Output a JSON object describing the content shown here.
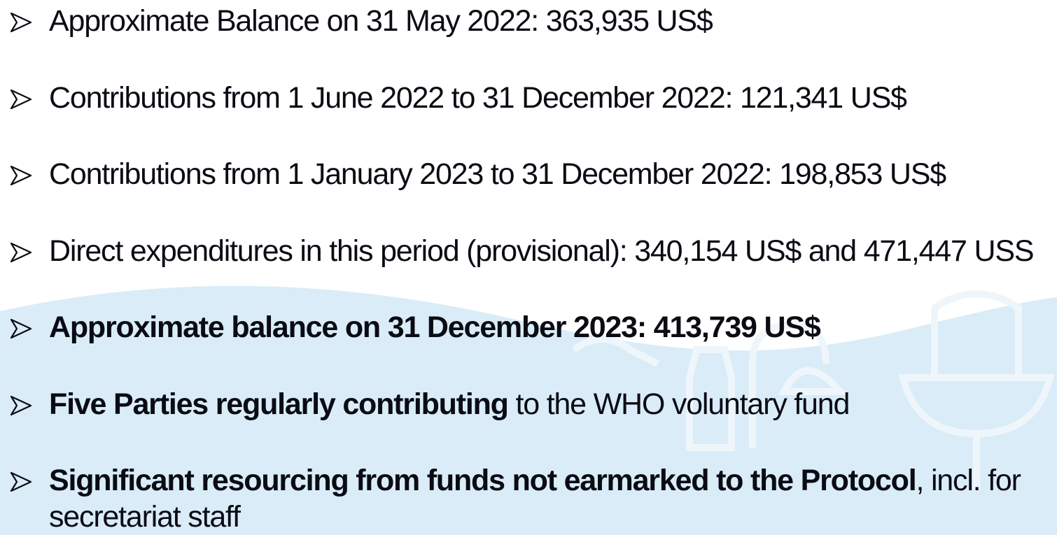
{
  "bullets": [
    {
      "segments": [
        {
          "text": "Approximate Balance on 31 May 2022: 363,935 US$",
          "bold": false
        }
      ]
    },
    {
      "segments": [
        {
          "text": "Contributions from 1 June 2022 to 31 December 2022: 121,341 US$",
          "bold": false
        }
      ]
    },
    {
      "segments": [
        {
          "text": "Contributions from 1 January 2023 to 31 December 2022: 198,853 US$",
          "bold": false
        }
      ]
    },
    {
      "segments": [
        {
          "text": "Direct expenditures in this period (provisional): 340,154 US$ and 471,447 USS",
          "bold": false
        }
      ]
    },
    {
      "segments": [
        {
          "text": "Approximate balance on 31 December 2023: 413,739 US$",
          "bold": true
        }
      ]
    },
    {
      "segments": [
        {
          "text": "Five Parties regularly contributing",
          "bold": true
        },
        {
          "text": " to the WHO voluntary fund",
          "bold": false
        }
      ]
    },
    {
      "segments": [
        {
          "text": "Significant resourcing from funds not earmarked to the Protocol",
          "bold": true
        },
        {
          "text": ", incl. for secretariat staff",
          "bold": false
        }
      ]
    }
  ]
}
